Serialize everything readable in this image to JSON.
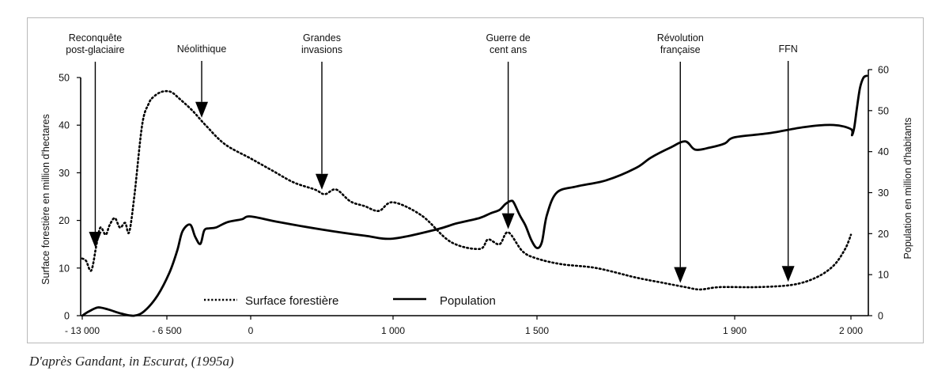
{
  "chart_data": {
    "type": "line",
    "x_ticks": [
      "- 13 000",
      "- 6 500",
      "0",
      "1 000",
      "1 500",
      "1 900",
      "2 000"
    ],
    "ylabel_left": "Surface forestière en million d'hectares",
    "ylabel_right": "Population en million d'habitants",
    "ylim_left": [
      0,
      50
    ],
    "ylim_right": [
      0,
      60
    ],
    "yticks_left": [
      0,
      10,
      20,
      30,
      40,
      50
    ],
    "yticks_right": [
      0,
      10,
      20,
      30,
      40,
      50,
      60
    ],
    "grid": false,
    "legend_position": "bottom-left",
    "series": [
      {
        "name": "Surface forestière",
        "axis": "left",
        "style": "dotted",
        "points": [
          [
            "-13 000",
            12
          ],
          [
            "-12 700",
            11.5
          ],
          [
            "-12 300",
            9.5
          ],
          [
            "-11 900",
            15
          ],
          [
            "-11 600",
            18.5
          ],
          [
            "-11 200",
            17
          ],
          [
            "-10 900",
            19
          ],
          [
            "-10 500",
            20.5
          ],
          [
            "-10 100",
            18.5
          ],
          [
            "-9 700",
            19.5
          ],
          [
            "-9 400",
            17.5
          ],
          [
            "-9 000",
            25
          ],
          [
            "-8 400",
            40
          ],
          [
            "-7 900",
            44.5
          ],
          [
            "-7 500",
            46
          ],
          [
            "-6 900",
            47
          ],
          [
            "-6 200",
            47
          ],
          [
            "-5 500",
            45.5
          ],
          [
            "-4 500",
            43
          ],
          [
            "-3 500",
            40
          ],
          [
            "-2 000",
            36
          ],
          [
            "0",
            33
          ],
          [
            "150",
            30.5
          ],
          [
            "300",
            28
          ],
          [
            "450",
            26.5
          ],
          [
            "520",
            25.5
          ],
          [
            "600",
            26.5
          ],
          [
            "700",
            24
          ],
          [
            "800",
            23
          ],
          [
            "900",
            22
          ],
          [
            "1 000",
            23.8
          ],
          [
            "1 100",
            21
          ],
          [
            "1 200",
            15.5
          ],
          [
            "1 300",
            14
          ],
          [
            "1 330",
            16
          ],
          [
            "1 370",
            15
          ],
          [
            "1 400",
            17.5
          ],
          [
            "1 450",
            13.5
          ],
          [
            "1 500",
            12
          ],
          [
            "1 550",
            10.8
          ],
          [
            "1 620",
            10
          ],
          [
            "1 700",
            8
          ],
          [
            "1 750",
            7
          ],
          [
            "1 800",
            6
          ],
          [
            "1 830",
            5.5
          ],
          [
            "1 870",
            6
          ],
          [
            "1 920",
            6
          ],
          [
            "1 950",
            6.5
          ],
          [
            "1 970",
            8
          ],
          [
            "1 985",
            10.5
          ],
          [
            "1 995",
            14
          ],
          [
            "2 000",
            17
          ]
        ]
      },
      {
        "name": "Population",
        "axis": "right",
        "style": "solid",
        "points": [
          [
            "-13 000",
            0
          ],
          [
            "-12 500",
            1
          ],
          [
            "-11 800",
            2
          ],
          [
            "-11 000",
            1.5
          ],
          [
            "-10 000",
            0.5
          ],
          [
            "-9 000",
            0
          ],
          [
            "-8 200",
            1.2
          ],
          [
            "-7 200",
            5
          ],
          [
            "-6 300",
            10.5
          ],
          [
            "-5 700",
            15.8
          ],
          [
            "-5 300",
            20.5
          ],
          [
            "-4 700",
            22.2
          ],
          [
            "-4 300",
            19.2
          ],
          [
            "-3 900",
            17.5
          ],
          [
            "-3 600",
            20.8
          ],
          [
            "-3 200",
            21.3
          ],
          [
            "-2 700",
            21.5
          ],
          [
            "-1 800",
            22.8
          ],
          [
            "-700",
            23.5
          ],
          [
            "0",
            24.2
          ],
          [
            "200",
            22.8
          ],
          [
            "500",
            21
          ],
          [
            "800",
            19.5
          ],
          [
            "1 000",
            18.8
          ],
          [
            "1 150",
            21
          ],
          [
            "1 220",
            22.5
          ],
          [
            "1 300",
            23.8
          ],
          [
            "1 340",
            25
          ],
          [
            "1 370",
            25.8
          ],
          [
            "1 390",
            27.2
          ],
          [
            "1 410",
            28
          ],
          [
            "1 420",
            27.5
          ],
          [
            "1 440",
            24.5
          ],
          [
            "1 460",
            22
          ],
          [
            "1 480",
            18.5
          ],
          [
            "1 500",
            16.5
          ],
          [
            "1 510",
            18
          ],
          [
            "1 520",
            24.5
          ],
          [
            "1 540",
            30
          ],
          [
            "1 580",
            31.5
          ],
          [
            "1 640",
            33
          ],
          [
            "1 700",
            36
          ],
          [
            "1 730",
            38.5
          ],
          [
            "1 770",
            41
          ],
          [
            "1 800",
            42.5
          ],
          [
            "1 820",
            40.5
          ],
          [
            "1 850",
            41
          ],
          [
            "1 880",
            42
          ],
          [
            "1 900",
            43.5
          ],
          [
            "1 930",
            44.5
          ],
          [
            "1 960",
            46
          ],
          [
            "1 985",
            46.5
          ],
          [
            "2 000",
            45.5
          ],
          [
            "2 010",
            44
          ],
          [
            "2 030",
            46
          ],
          [
            "2 050",
            50
          ],
          [
            "2 080",
            55.5
          ],
          [
            "2 110",
            58
          ],
          [
            "2 140",
            58.5
          ]
        ]
      }
    ],
    "annotations": [
      {
        "lines": [
          "Reconquête",
          "post-glaciaire"
        ],
        "x": "-12 000"
      },
      {
        "lines": [
          "Néolithique"
        ],
        "x": "-3 800"
      },
      {
        "lines": [
          "Grandes",
          "invasions"
        ],
        "x": "500"
      },
      {
        "lines": [
          "Guerre de",
          "cent ans"
        ],
        "x": "1 400"
      },
      {
        "lines": [
          "Révolution",
          "française"
        ],
        "x": "1 790"
      },
      {
        "lines": [
          "FFN"
        ],
        "x": "1 946"
      }
    ]
  },
  "caption": "D'après Gandant, in Escurat, (1995a)"
}
